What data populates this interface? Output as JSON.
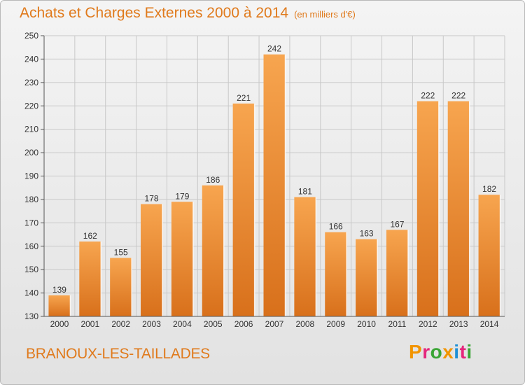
{
  "header": {
    "title": "Achats et Charges Externes 2000 à 2014",
    "subtitle": "(en milliers d'€)"
  },
  "footer": {
    "commune": "BRANOUX-LES-TAILLADES",
    "logo_text": "Proxiti",
    "logo_colors": [
      "#f29400",
      "#e5267c",
      "#3aa535",
      "#f29400",
      "#1d8fd5",
      "#e5267c",
      "#3aa535"
    ]
  },
  "chart_data": {
    "type": "bar",
    "categories": [
      "2000",
      "2001",
      "2002",
      "2003",
      "2004",
      "2005",
      "2006",
      "2007",
      "2008",
      "2009",
      "2010",
      "2011",
      "2012",
      "2013",
      "2014"
    ],
    "values": [
      139,
      162,
      155,
      178,
      179,
      186,
      221,
      242,
      181,
      166,
      163,
      167,
      222,
      222,
      182
    ],
    "title": "Achats et Charges Externes 2000 à 2014",
    "subtitle": "(en milliers d'€)",
    "xlabel": "",
    "ylabel": "",
    "ylim": [
      130,
      250
    ],
    "yticks": [
      130,
      140,
      150,
      160,
      170,
      180,
      190,
      200,
      210,
      220,
      230,
      240,
      250
    ],
    "grid": true,
    "bar_color_light": "#f7a54f",
    "bar_color_dark": "#d8701b"
  }
}
